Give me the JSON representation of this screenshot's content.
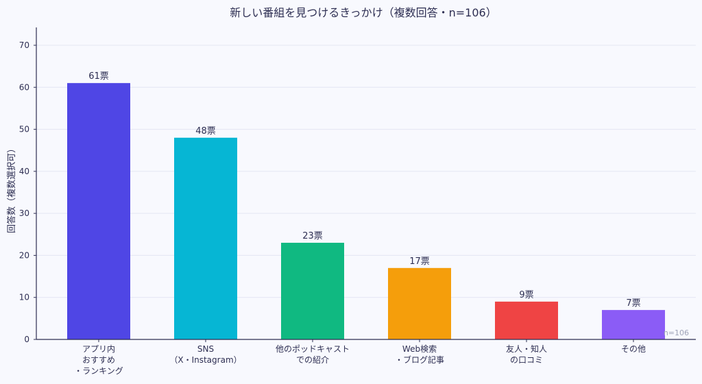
{
  "chart_data": {
    "type": "bar",
    "title": "新しい番組を見つけるきっかけ（複数回答・n=106）",
    "xlabel": "",
    "ylabel": "回答数（複数選択可）",
    "ylim": [
      0,
      74
    ],
    "yticks": [
      0,
      10,
      20,
      30,
      40,
      50,
      60,
      70
    ],
    "grid": true,
    "categories": [
      [
        "アプリ内",
        "おすすめ",
        "・ランキング"
      ],
      [
        "SNS",
        "（X・Instagram）"
      ],
      [
        "他のポッドキャスト",
        "での紹介"
      ],
      [
        "Web検索",
        "・ブログ記事"
      ],
      [
        "友人・知人",
        "の口コミ"
      ],
      [
        "その他"
      ]
    ],
    "values": [
      61,
      48,
      23,
      17,
      9,
      7
    ],
    "data_labels": [
      "61票",
      "48票",
      "23票",
      "17票",
      "9票",
      "7票"
    ],
    "colors": [
      "#4f46e5",
      "#06b6d4",
      "#10b981",
      "#f59e0b",
      "#ef4444",
      "#8b5cf6"
    ],
    "annotation": "n=106"
  }
}
